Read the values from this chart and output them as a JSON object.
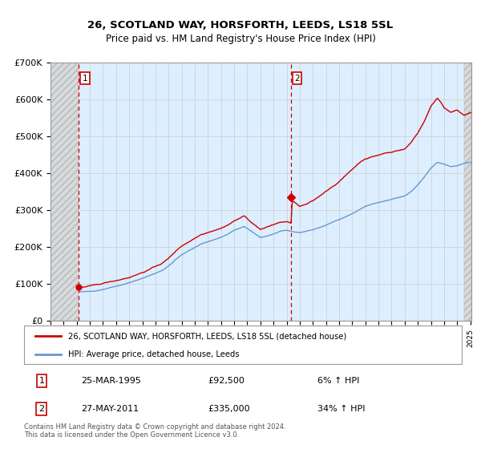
{
  "title_line1": "26, SCOTLAND WAY, HORSFORTH, LEEDS, LS18 5SL",
  "title_line2": "Price paid vs. HM Land Registry's House Price Index (HPI)",
  "ylim": [
    0,
    700000
  ],
  "yticks": [
    0,
    100000,
    200000,
    300000,
    400000,
    500000,
    600000,
    700000
  ],
  "ytick_labels": [
    "£0",
    "£100K",
    "£200K",
    "£300K",
    "£400K",
    "£500K",
    "£600K",
    "£700K"
  ],
  "sale1_year": 1995,
  "sale1_month": 3,
  "sale1_price": 92500,
  "sale2_year": 2011,
  "sale2_month": 5,
  "sale2_price": 335000,
  "legend_label_red": "26, SCOTLAND WAY, HORSFORTH, LEEDS, LS18 5SL (detached house)",
  "legend_label_blue": "HPI: Average price, detached house, Leeds",
  "table_row1": [
    "1",
    "25-MAR-1995",
    "£92,500",
    "6% ↑ HPI"
  ],
  "table_row2": [
    "2",
    "27-MAY-2011",
    "£335,000",
    "34% ↑ HPI"
  ],
  "footnote": "Contains HM Land Registry data © Crown copyright and database right 2024.\nThis data is licensed under the Open Government Licence v3.0.",
  "line_color_red": "#cc0000",
  "line_color_blue": "#6699cc",
  "grid_color": "#cccccc",
  "bg_color": "#ddeeff",
  "hatch_bg": "#d8d8d8",
  "xmin": 1993,
  "xmax": 2025,
  "hpi_keypoints": [
    [
      1993.0,
      76000
    ],
    [
      1993.5,
      74000
    ],
    [
      1994.0,
      76000
    ],
    [
      1994.5,
      78000
    ],
    [
      1995.0,
      80000
    ],
    [
      1995.5,
      81000
    ],
    [
      1996.0,
      82000
    ],
    [
      1996.5,
      84000
    ],
    [
      1997.0,
      88000
    ],
    [
      1997.5,
      93000
    ],
    [
      1998.0,
      97000
    ],
    [
      1998.5,
      101000
    ],
    [
      1999.0,
      106000
    ],
    [
      1999.5,
      112000
    ],
    [
      2000.0,
      118000
    ],
    [
      2000.5,
      125000
    ],
    [
      2001.0,
      132000
    ],
    [
      2001.5,
      140000
    ],
    [
      2002.0,
      152000
    ],
    [
      2002.5,
      168000
    ],
    [
      2003.0,
      182000
    ],
    [
      2003.5,
      192000
    ],
    [
      2004.0,
      202000
    ],
    [
      2004.5,
      212000
    ],
    [
      2005.0,
      218000
    ],
    [
      2005.5,
      224000
    ],
    [
      2006.0,
      230000
    ],
    [
      2006.5,
      238000
    ],
    [
      2007.0,
      248000
    ],
    [
      2007.5,
      255000
    ],
    [
      2007.75,
      258000
    ],
    [
      2008.0,
      252000
    ],
    [
      2008.5,
      240000
    ],
    [
      2009.0,
      228000
    ],
    [
      2009.5,
      232000
    ],
    [
      2010.0,
      238000
    ],
    [
      2010.5,
      244000
    ],
    [
      2011.0,
      246000
    ],
    [
      2011.5,
      242000
    ],
    [
      2012.0,
      240000
    ],
    [
      2012.5,
      244000
    ],
    [
      2013.0,
      248000
    ],
    [
      2013.5,
      254000
    ],
    [
      2014.0,
      260000
    ],
    [
      2014.5,
      268000
    ],
    [
      2015.0,
      276000
    ],
    [
      2015.5,
      284000
    ],
    [
      2016.0,
      292000
    ],
    [
      2016.5,
      302000
    ],
    [
      2017.0,
      312000
    ],
    [
      2017.5,
      318000
    ],
    [
      2018.0,
      322000
    ],
    [
      2018.5,
      326000
    ],
    [
      2019.0,
      330000
    ],
    [
      2019.5,
      334000
    ],
    [
      2020.0,
      338000
    ],
    [
      2020.5,
      350000
    ],
    [
      2021.0,
      368000
    ],
    [
      2021.5,
      390000
    ],
    [
      2022.0,
      415000
    ],
    [
      2022.5,
      430000
    ],
    [
      2023.0,
      425000
    ],
    [
      2023.5,
      418000
    ],
    [
      2024.0,
      420000
    ],
    [
      2024.5,
      425000
    ],
    [
      2025.0,
      430000
    ]
  ],
  "red_keypoints": [
    [
      1995.25,
      92500
    ],
    [
      1995.5,
      91000
    ],
    [
      1996.0,
      93000
    ],
    [
      1996.5,
      95000
    ],
    [
      1997.0,
      99000
    ],
    [
      1997.5,
      104000
    ],
    [
      1998.0,
      108000
    ],
    [
      1998.5,
      113000
    ],
    [
      1999.0,
      118000
    ],
    [
      1999.5,
      125000
    ],
    [
      2000.0,
      132000
    ],
    [
      2000.5,
      140000
    ],
    [
      2001.0,
      148000
    ],
    [
      2001.5,
      157000
    ],
    [
      2002.0,
      170000
    ],
    [
      2002.5,
      188000
    ],
    [
      2003.0,
      204000
    ],
    [
      2003.5,
      215000
    ],
    [
      2004.0,
      226000
    ],
    [
      2004.5,
      237000
    ],
    [
      2005.0,
      244000
    ],
    [
      2005.5,
      251000
    ],
    [
      2006.0,
      257000
    ],
    [
      2006.5,
      266000
    ],
    [
      2007.0,
      277000
    ],
    [
      2007.5,
      286000
    ],
    [
      2007.75,
      290000
    ],
    [
      2008.0,
      283000
    ],
    [
      2008.5,
      268000
    ],
    [
      2009.0,
      255000
    ],
    [
      2009.5,
      260000
    ],
    [
      2010.0,
      267000
    ],
    [
      2010.5,
      273000
    ],
    [
      2011.0,
      275000
    ],
    [
      2011.4,
      268000
    ],
    [
      2011.42,
      335000
    ],
    [
      2011.5,
      330000
    ],
    [
      2012.0,
      315000
    ],
    [
      2012.5,
      320000
    ],
    [
      2013.0,
      328000
    ],
    [
      2013.5,
      340000
    ],
    [
      2014.0,
      355000
    ],
    [
      2014.5,
      368000
    ],
    [
      2015.0,
      382000
    ],
    [
      2015.5,
      398000
    ],
    [
      2016.0,
      415000
    ],
    [
      2016.5,
      432000
    ],
    [
      2017.0,
      445000
    ],
    [
      2017.5,
      450000
    ],
    [
      2018.0,
      455000
    ],
    [
      2018.5,
      460000
    ],
    [
      2019.0,
      462000
    ],
    [
      2019.5,
      468000
    ],
    [
      2020.0,
      472000
    ],
    [
      2020.5,
      490000
    ],
    [
      2021.0,
      516000
    ],
    [
      2021.5,
      548000
    ],
    [
      2022.0,
      590000
    ],
    [
      2022.5,
      610000
    ],
    [
      2022.75,
      600000
    ],
    [
      2023.0,
      585000
    ],
    [
      2023.5,
      575000
    ],
    [
      2024.0,
      580000
    ],
    [
      2024.5,
      565000
    ],
    [
      2025.0,
      570000
    ]
  ]
}
